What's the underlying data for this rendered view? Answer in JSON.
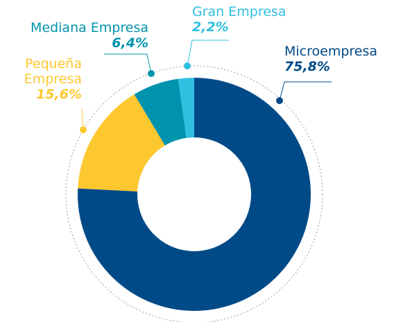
{
  "chart_data": {
    "type": "donut",
    "categories": [
      "Microempresa",
      "Pequeña Empresa",
      "Mediana Empresa",
      "Gran Empresa"
    ],
    "values": [
      75.8,
      15.6,
      6.4,
      2.2
    ],
    "value_labels": [
      "75,8%",
      "15,6%",
      "6,4%",
      "2,2%"
    ],
    "colors": [
      "#004a87",
      "#fdc72f",
      "#0093ae",
      "#2fbfe0"
    ]
  }
}
